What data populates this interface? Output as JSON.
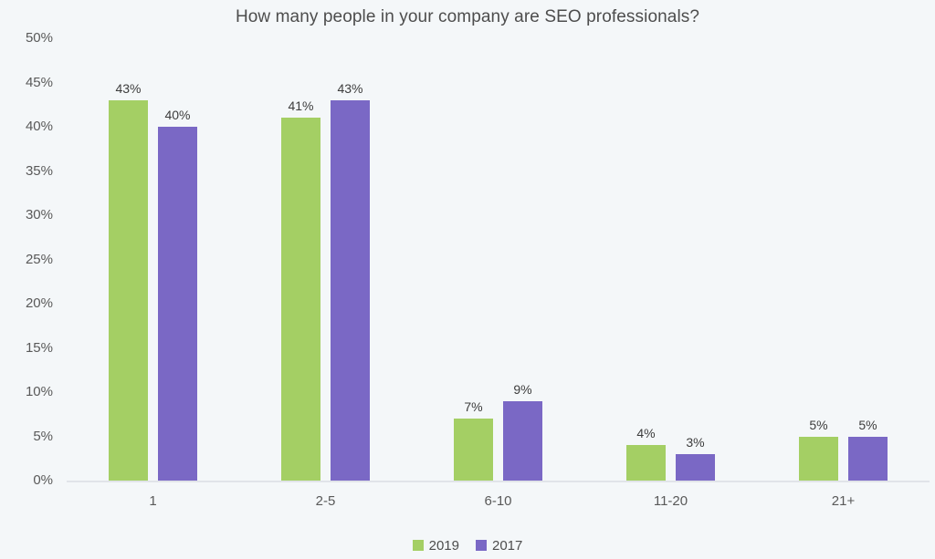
{
  "chart_data": {
    "type": "bar",
    "title": "How many people in your company are SEO professionals?",
    "categories": [
      "1",
      "2-5",
      "6-10",
      "11-20",
      "21+"
    ],
    "series": [
      {
        "name": "2019",
        "color": "#a4cf64",
        "values": [
          43,
          41,
          7,
          4,
          5
        ]
      },
      {
        "name": "2017",
        "color": "#7a68c5",
        "values": [
          40,
          43,
          9,
          3,
          5
        ]
      }
    ],
    "value_suffix": "%",
    "y_ticks": [
      "0%",
      "5%",
      "10%",
      "15%",
      "20%",
      "25%",
      "30%",
      "35%",
      "40%",
      "45%",
      "50%"
    ],
    "y_tick_values": [
      0,
      5,
      10,
      15,
      20,
      25,
      30,
      35,
      40,
      45,
      50
    ],
    "ylim": [
      0,
      50
    ],
    "grid": false,
    "legend_position": "bottom",
    "background_color": "#f4f7f9",
    "axis_line_color": "#e1e4e9",
    "text_color": "#595959"
  }
}
